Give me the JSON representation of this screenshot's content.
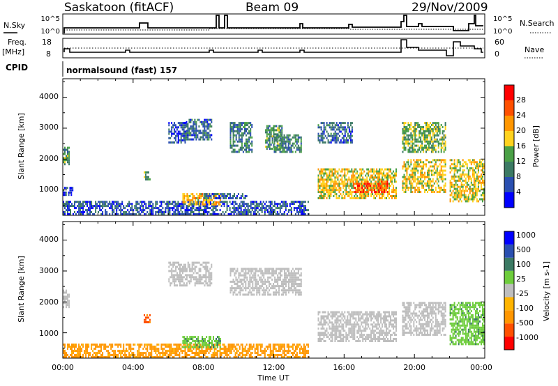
{
  "header": {
    "station": "Saskatoon (fitACF)",
    "beam": "Beam 09",
    "date": "29/Nov/2009"
  },
  "strip_panels": {
    "nsky_label": "N.Sky",
    "nsearch_label": "N.Search",
    "nsky_ticks": [
      "10^5",
      "10^0"
    ],
    "nsearch_ticks": [
      "10^5",
      "10^0"
    ],
    "freq_label": "Freq.",
    "freq_unit": "[MHz]",
    "freq_ticks": [
      "18",
      "8"
    ],
    "nave_label": "Nave",
    "nave_ticks": [
      "60",
      "0"
    ],
    "cpid_label": "CPID",
    "cpid_text": "normalsound (fast) 157"
  },
  "colors": {
    "power_scale": [
      "#0000ff",
      "#2a4fb0",
      "#3c7a64",
      "#4aa046",
      "#ffd21e",
      "#ff9600",
      "#ff5000",
      "#ff0000"
    ],
    "velocity_scale": [
      "#ff0000",
      "#ff5000",
      "#ff9600",
      "#ffb400",
      "#bebebe",
      "#6ecd3c",
      "#3c7a64",
      "#2a4fb0",
      "#0000ff"
    ],
    "ground_scatter": "#bebebe"
  },
  "chart_data": [
    {
      "type": "heatmap",
      "name": "power",
      "ylabel": "Slant Range [km]",
      "yticks": [
        "1000",
        "2000",
        "3000",
        "4000"
      ],
      "ylim": [
        180,
        4600
      ],
      "xlim": [
        0,
        24
      ],
      "colorbar_label": "Power [dB]",
      "colorbar_ticks": [
        "4",
        "8",
        "12",
        "16",
        "20",
        "24",
        "28"
      ],
      "colorbar_range": [
        0,
        32
      ],
      "regions": [
        {
          "t0": 0.0,
          "t1": 0.4,
          "r0": 1800,
          "r1": 2400,
          "value": 12
        },
        {
          "t0": 0.0,
          "t1": 0.6,
          "r0": 800,
          "r1": 1100,
          "value": 6
        },
        {
          "t0": 0.0,
          "t1": 14.0,
          "r0": 180,
          "r1": 650,
          "value": 6
        },
        {
          "t0": 6.0,
          "t1": 7.0,
          "r0": 2500,
          "r1": 3200,
          "value": 6
        },
        {
          "t0": 7.0,
          "t1": 8.5,
          "r0": 2600,
          "r1": 3300,
          "value": 8
        },
        {
          "t0": 9.5,
          "t1": 10.8,
          "r0": 2200,
          "r1": 3200,
          "value": 10
        },
        {
          "t0": 11.5,
          "t1": 12.5,
          "r0": 2300,
          "r1": 3100,
          "value": 12
        },
        {
          "t0": 12.0,
          "t1": 13.6,
          "r0": 2200,
          "r1": 2800,
          "value": 10
        },
        {
          "t0": 4.6,
          "t1": 5.0,
          "r0": 1300,
          "r1": 1600,
          "value": 14
        },
        {
          "t0": 6.8,
          "t1": 9.0,
          "r0": 500,
          "r1": 900,
          "value": 20
        },
        {
          "t0": 8.0,
          "t1": 10.5,
          "r0": 700,
          "r1": 900,
          "value": 8
        },
        {
          "t0": 14.5,
          "t1": 19.0,
          "r0": 700,
          "r1": 1700,
          "value": 18
        },
        {
          "t0": 16.5,
          "t1": 18.5,
          "r0": 900,
          "r1": 1300,
          "value": 26
        },
        {
          "t0": 14.5,
          "t1": 16.5,
          "r0": 2500,
          "r1": 3200,
          "value": 8
        },
        {
          "t0": 19.3,
          "t1": 21.8,
          "r0": 900,
          "r1": 2000,
          "value": 18
        },
        {
          "t0": 19.3,
          "t1": 21.8,
          "r0": 2200,
          "r1": 3200,
          "value": 14
        },
        {
          "t0": 22.0,
          "t1": 24.0,
          "r0": 600,
          "r1": 2000,
          "value": 18
        }
      ]
    },
    {
      "type": "heatmap",
      "name": "velocity",
      "ylabel": "Slant Range [km]",
      "yticks": [
        "1000",
        "2000",
        "3000",
        "4000"
      ],
      "ylim": [
        180,
        4600
      ],
      "xlim": [
        0,
        24
      ],
      "xlabel": "Time UT",
      "xticks": [
        "00:00",
        "04:00",
        "08:00",
        "12:00",
        "16:00",
        "20:00",
        "00:00"
      ],
      "colorbar_label": "Velocity [m s-1]",
      "colorbar_ticks": [
        "-1000",
        "-500",
        "-100",
        "-25",
        "25",
        "100",
        "500",
        "1000"
      ],
      "regions": [
        {
          "t0": 0.0,
          "t1": 0.4,
          "r0": 1800,
          "r1": 2400,
          "value": "ground"
        },
        {
          "t0": 0.0,
          "t1": 14.0,
          "r0": 180,
          "r1": 650,
          "value": -100
        },
        {
          "t0": 6.0,
          "t1": 8.5,
          "r0": 2500,
          "r1": 3300,
          "value": "ground"
        },
        {
          "t0": 9.5,
          "t1": 13.6,
          "r0": 2200,
          "r1": 3100,
          "value": "ground"
        },
        {
          "t0": 4.6,
          "t1": 5.0,
          "r0": 1300,
          "r1": 1600,
          "value": -500
        },
        {
          "t0": 6.8,
          "t1": 9.0,
          "r0": 500,
          "r1": 900,
          "value": 100
        },
        {
          "t0": 14.5,
          "t1": 19.0,
          "r0": 700,
          "r1": 1700,
          "value": "ground"
        },
        {
          "t0": 19.3,
          "t1": 21.8,
          "r0": 900,
          "r1": 2000,
          "value": "ground"
        },
        {
          "t0": 22.0,
          "t1": 24.0,
          "r0": 600,
          "r1": 2000,
          "value": 100
        }
      ]
    }
  ]
}
